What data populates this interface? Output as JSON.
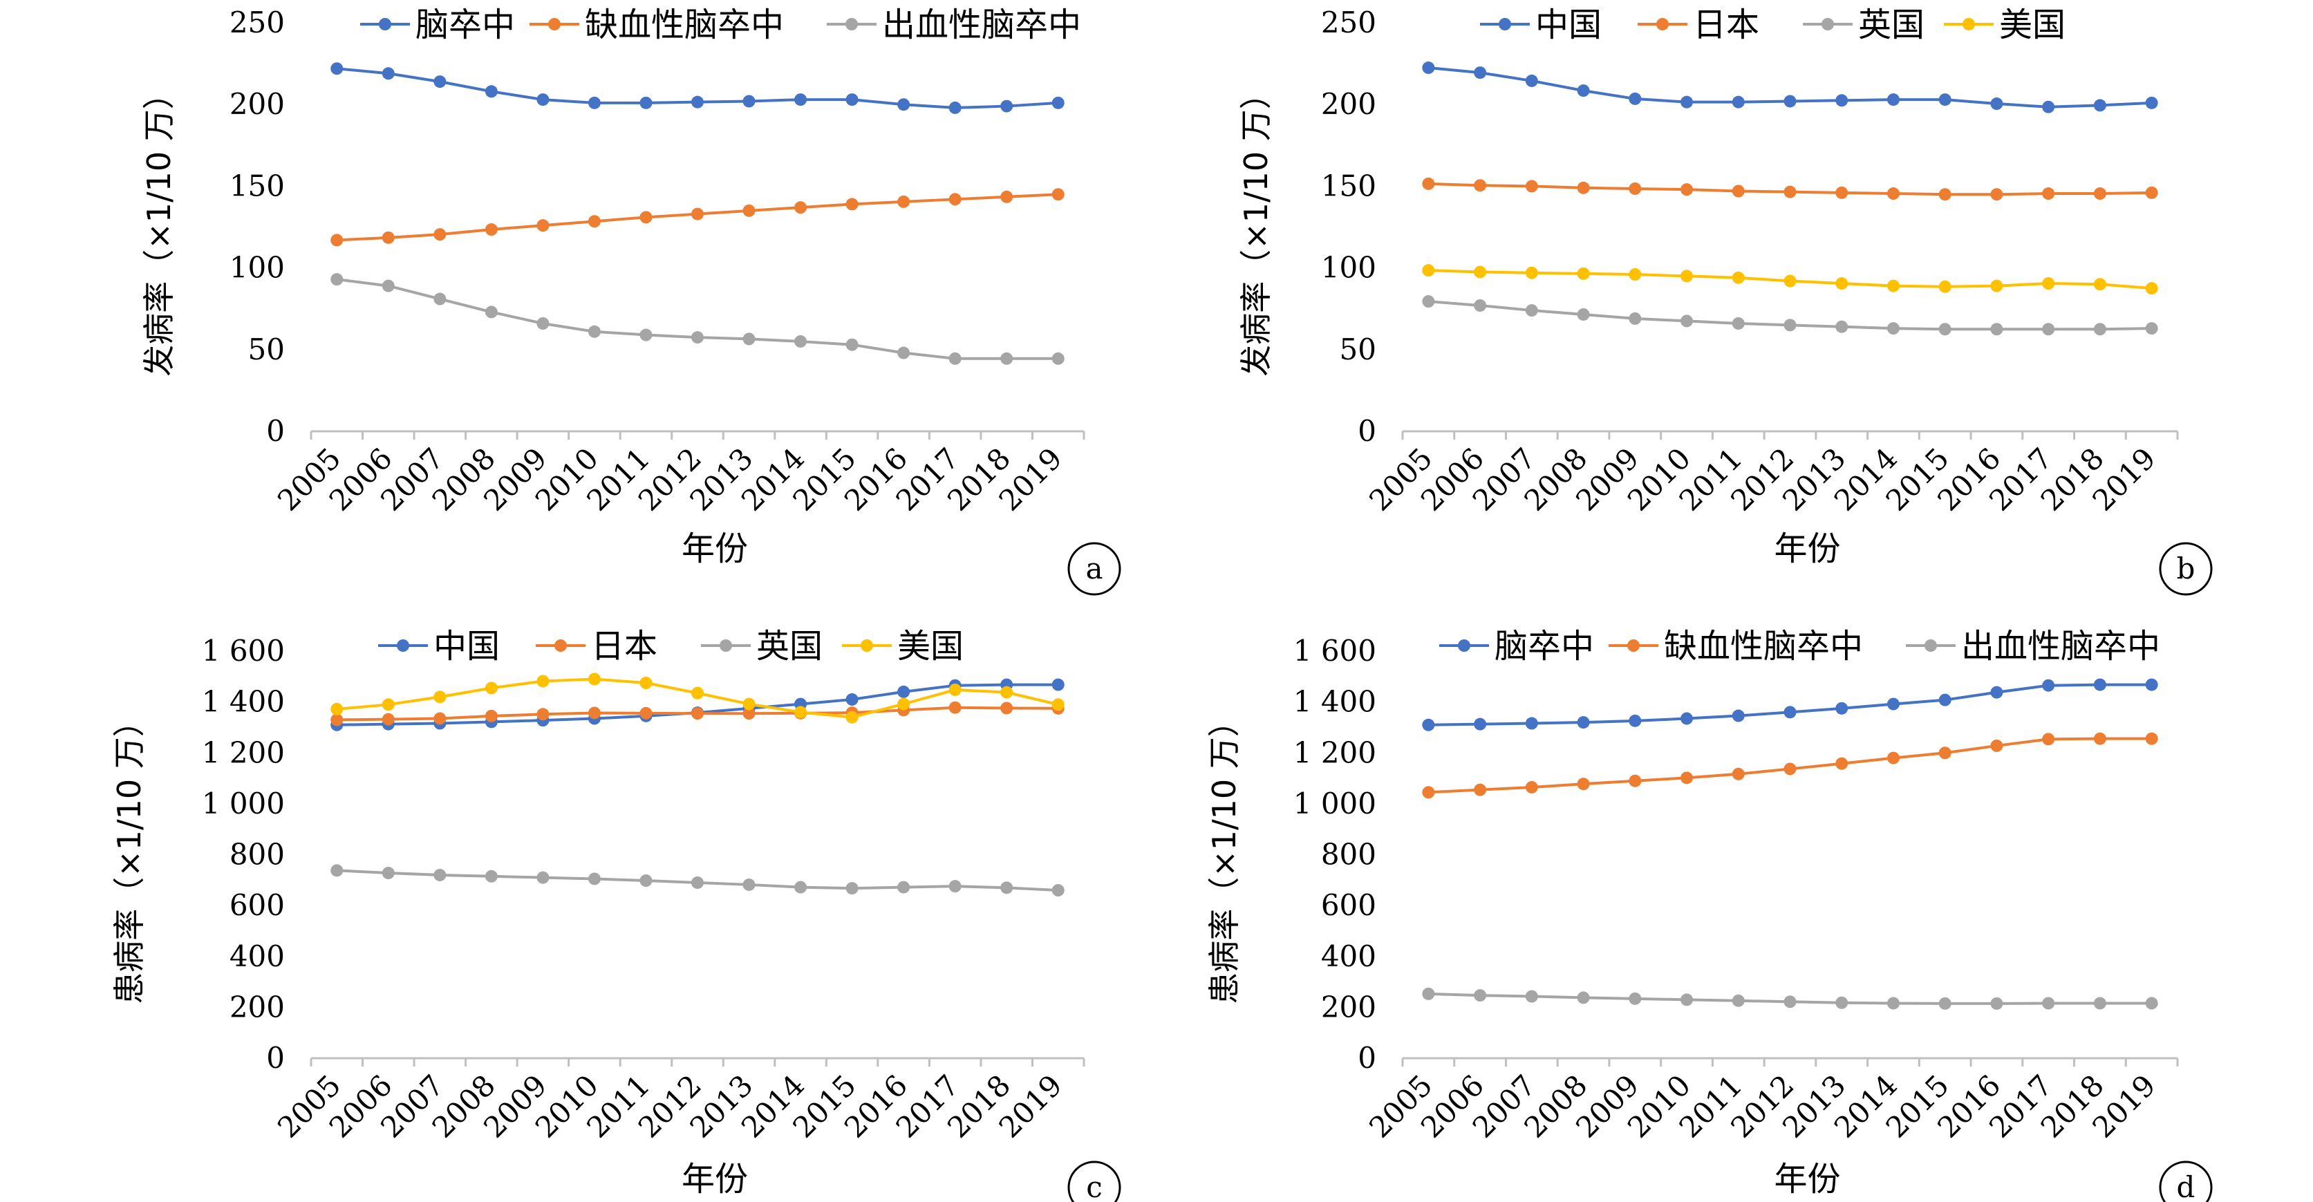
{
  "chart_data": [
    {
      "panel": "a",
      "type": "line",
      "categories": [
        "2005",
        "2006",
        "2007",
        "2008",
        "2009",
        "2010",
        "2011",
        "2012",
        "2013",
        "2014",
        "2015",
        "2016",
        "2017",
        "2018",
        "2019"
      ],
      "xlabel": "年份",
      "ylabel": "发病率（×1/10 万）",
      "ylim": [
        0,
        250
      ],
      "yticks": [
        0,
        50,
        100,
        150,
        200,
        250
      ],
      "ytick_labels": [
        "0",
        "50",
        "100",
        "150",
        "200",
        "250"
      ],
      "legend": "top",
      "grid": false,
      "series": [
        {
          "name": "脑卒中",
          "color": "#4472C4",
          "values": [
            222,
            219,
            214,
            208,
            203,
            201,
            201,
            201.5,
            202,
            203,
            203,
            200,
            198,
            199,
            201
          ]
        },
        {
          "name": "缺血性脑卒中",
          "color": "#ED7D31",
          "values": [
            117,
            118.5,
            120.5,
            123.5,
            126,
            128.5,
            131,
            133,
            135,
            137,
            139,
            140.5,
            142,
            143.5,
            145
          ]
        },
        {
          "name": "出血性脑卒中",
          "color": "#A5A5A5",
          "values": [
            93,
            89,
            81,
            73,
            66,
            61,
            59,
            57.5,
            56.5,
            55,
            53,
            48,
            44.5,
            44.5,
            44.5
          ]
        }
      ]
    },
    {
      "panel": "b",
      "type": "line",
      "categories": [
        "2005",
        "2006",
        "2007",
        "2008",
        "2009",
        "2010",
        "2011",
        "2012",
        "2013",
        "2014",
        "2015",
        "2016",
        "2017",
        "2018",
        "2019"
      ],
      "xlabel": "年份",
      "ylabel": "发病率（×1/10 万）",
      "ylim": [
        0,
        250
      ],
      "yticks": [
        0,
        50,
        100,
        150,
        200,
        250
      ],
      "ytick_labels": [
        "0",
        "50",
        "100",
        "150",
        "200",
        "250"
      ],
      "legend": "top",
      "grid": false,
      "series": [
        {
          "name": "中国",
          "color": "#4472C4",
          "values": [
            222.5,
            219.5,
            214.5,
            208.5,
            203.5,
            201.5,
            201.5,
            202,
            202.5,
            203,
            203,
            200.5,
            198.5,
            199.5,
            201
          ]
        },
        {
          "name": "日本",
          "color": "#ED7D31",
          "values": [
            151.5,
            150.5,
            150,
            149,
            148.5,
            148,
            147,
            146.5,
            146,
            145.5,
            145,
            145,
            145.5,
            145.5,
            146
          ]
        },
        {
          "name": "英国",
          "color": "#A5A5A5",
          "values": [
            79.5,
            77,
            74,
            71.5,
            69,
            67.5,
            66,
            65,
            64,
            63,
            62.5,
            62.5,
            62.5,
            62.5,
            63
          ]
        },
        {
          "name": "美国",
          "color": "#FFC000",
          "values": [
            98.5,
            97.5,
            97,
            96.5,
            96,
            95,
            94,
            92,
            90.5,
            89,
            88.5,
            89,
            90.5,
            90,
            87.5
          ]
        }
      ]
    },
    {
      "panel": "c",
      "type": "line",
      "categories": [
        "2005",
        "2006",
        "2007",
        "2008",
        "2009",
        "2010",
        "2011",
        "2012",
        "2013",
        "2014",
        "2015",
        "2016",
        "2017",
        "2018",
        "2019"
      ],
      "xlabel": "年份",
      "ylabel": "患病率（×1/10 万）",
      "ylim": [
        0,
        1600
      ],
      "yticks": [
        0,
        200,
        400,
        600,
        800,
        1000,
        1200,
        1400,
        1600
      ],
      "ytick_labels": [
        "0",
        "200",
        "400",
        "600",
        "800",
        "1 000",
        "1 200",
        "1 400",
        "1 600"
      ],
      "legend": "top",
      "grid": false,
      "series": [
        {
          "name": "中国",
          "color": "#4472C4",
          "values": [
            1310,
            1313,
            1316,
            1322,
            1328,
            1335,
            1345,
            1358,
            1375,
            1392,
            1410,
            1440,
            1465,
            1468,
            1468
          ]
        },
        {
          "name": "日本",
          "color": "#ED7D31",
          "values": [
            1330,
            1332,
            1335,
            1345,
            1352,
            1357,
            1356,
            1355,
            1355,
            1356,
            1358,
            1368,
            1378,
            1376,
            1375
          ]
        },
        {
          "name": "英国",
          "color": "#A5A5A5",
          "values": [
            738,
            728,
            720,
            715,
            710,
            705,
            698,
            690,
            682,
            672,
            668,
            672,
            676,
            670,
            660
          ]
        },
        {
          "name": "美国",
          "color": "#FFC000",
          "values": [
            1372,
            1390,
            1420,
            1455,
            1482,
            1490,
            1475,
            1435,
            1392,
            1360,
            1340,
            1392,
            1448,
            1438,
            1390
          ]
        }
      ]
    },
    {
      "panel": "d",
      "type": "line",
      "categories": [
        "2005",
        "2006",
        "2007",
        "2008",
        "2009",
        "2010",
        "2011",
        "2012",
        "2013",
        "2014",
        "2015",
        "2016",
        "2017",
        "2018",
        "2019"
      ],
      "xlabel": "年份",
      "ylabel": "患病率（×1/10 万）",
      "ylim": [
        0,
        1600
      ],
      "yticks": [
        0,
        200,
        400,
        600,
        800,
        1000,
        1200,
        1400,
        1600
      ],
      "ytick_labels": [
        "0",
        "200",
        "400",
        "600",
        "800",
        "1 000",
        "1 200",
        "1 400",
        "1 600"
      ],
      "legend": "top",
      "grid": false,
      "series": [
        {
          "name": "脑卒中",
          "color": "#4472C4",
          "values": [
            1310,
            1313,
            1316,
            1320,
            1326,
            1335,
            1346,
            1360,
            1375,
            1392,
            1408,
            1438,
            1465,
            1468,
            1468
          ]
        },
        {
          "name": "缺血性脑卒中",
          "color": "#ED7D31",
          "values": [
            1045,
            1055,
            1065,
            1078,
            1090,
            1102,
            1117,
            1137,
            1158,
            1180,
            1200,
            1228,
            1254,
            1256,
            1256
          ]
        },
        {
          "name": "出血性脑卒中",
          "color": "#A5A5A5",
          "values": [
            253,
            247,
            243,
            238,
            234,
            230,
            226,
            222,
            218,
            216,
            215,
            215,
            216,
            216,
            216
          ]
        }
      ]
    }
  ]
}
